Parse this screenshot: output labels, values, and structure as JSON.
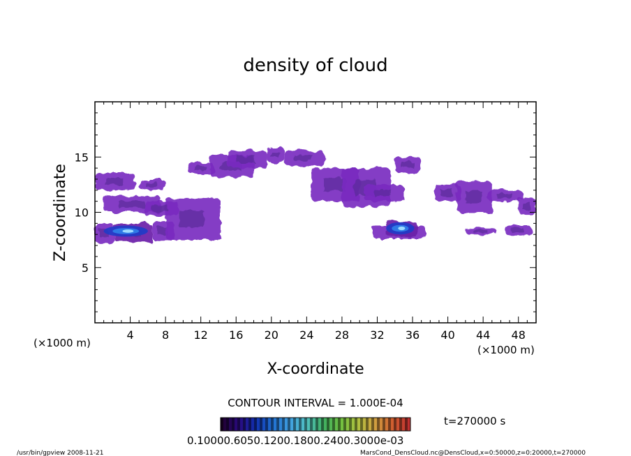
{
  "chart_data": {
    "type": "heatmap",
    "title": "density of cloud",
    "xlabel": "X-coordinate",
    "ylabel": "Z-coordinate",
    "x_unit": "(×1000 m)",
    "y_unit": "(×1000 m)",
    "xlim": [
      0,
      50
    ],
    "ylim": [
      0,
      20
    ],
    "x_ticks": [
      4,
      8,
      12,
      16,
      20,
      24,
      28,
      32,
      36,
      40,
      44,
      48
    ],
    "y_ticks": [
      5,
      10,
      15
    ],
    "contour_interval": "CONTOUR INTERVAL = 1.000E-04",
    "time_label": "t=270000 s",
    "colorbar_labels": "0.10000.6050.1200.1800.2400.3000e-03",
    "footer_left": "/usr/bin/gpview   2008-11-21",
    "footer_right": "MarsCond_DensCloud.nc@DensCloud,x=0:50000,z=0:20000,t=270000",
    "colorbar_colors": [
      "#200030",
      "#2a0a80",
      "#1030b0",
      "#2070d0",
      "#40a0e0",
      "#50c0c0",
      "#40b060",
      "#70c040",
      "#b0c040",
      "#d0a040",
      "#d06030",
      "#c03030"
    ],
    "cloud_regions": [
      {
        "x": [
          0.0,
          2.2
        ],
        "z": [
          7.2,
          9.0
        ],
        "level": 1
      },
      {
        "x": [
          2.2,
          6.5
        ],
        "z": [
          7.3,
          9.0
        ],
        "level": 2
      },
      {
        "x": [
          6.5,
          9.0
        ],
        "z": [
          7.4,
          9.2
        ],
        "level": 1
      },
      {
        "x": [
          8.0,
          14.2
        ],
        "z": [
          7.5,
          11.3
        ],
        "level": 1
      },
      {
        "x": [
          0.0,
          4.5
        ],
        "z": [
          12.0,
          13.6
        ],
        "level": 1
      },
      {
        "x": [
          1.0,
          7.5
        ],
        "z": [
          10.0,
          11.5
        ],
        "level": 1
      },
      {
        "x": [
          5.5,
          9.5
        ],
        "z": [
          9.7,
          11.0
        ],
        "level": 1
      },
      {
        "x": [
          5.0,
          8.0
        ],
        "z": [
          12.0,
          13.0
        ],
        "level": 1
      },
      {
        "x": [
          10.5,
          13.5
        ],
        "z": [
          13.5,
          14.5
        ],
        "level": 1
      },
      {
        "x": [
          13.0,
          18.0
        ],
        "z": [
          13.2,
          15.2
        ],
        "level": 1
      },
      {
        "x": [
          15.0,
          19.5
        ],
        "z": [
          14.0,
          15.6
        ],
        "level": 1
      },
      {
        "x": [
          19.5,
          21.5
        ],
        "z": [
          14.5,
          15.9
        ],
        "level": 1
      },
      {
        "x": [
          21.5,
          26.0
        ],
        "z": [
          14.2,
          15.6
        ],
        "level": 1
      },
      {
        "x": [
          24.5,
          30.0
        ],
        "z": [
          11.0,
          14.0
        ],
        "level": 1
      },
      {
        "x": [
          28.0,
          33.5
        ],
        "z": [
          10.5,
          14.0
        ],
        "level": 1
      },
      {
        "x": [
          30.5,
          35.0
        ],
        "z": [
          11.0,
          12.5
        ],
        "level": 1
      },
      {
        "x": [
          34.0,
          37.0
        ],
        "z": [
          13.6,
          15.0
        ],
        "level": 1
      },
      {
        "x": [
          31.5,
          37.5
        ],
        "z": [
          7.6,
          8.8
        ],
        "level": 1
      },
      {
        "x": [
          33.0,
          36.5
        ],
        "z": [
          7.8,
          9.2
        ],
        "level": 2
      },
      {
        "x": [
          38.5,
          41.5
        ],
        "z": [
          11.0,
          12.5
        ],
        "level": 1
      },
      {
        "x": [
          41.0,
          45.0
        ],
        "z": [
          10.0,
          12.8
        ],
        "level": 1
      },
      {
        "x": [
          44.5,
          48.5
        ],
        "z": [
          11.0,
          12.0
        ],
        "level": 1
      },
      {
        "x": [
          48.0,
          50.0
        ],
        "z": [
          9.8,
          11.3
        ],
        "level": 1
      },
      {
        "x": [
          42.0,
          45.5
        ],
        "z": [
          8.0,
          8.6
        ],
        "level": 1
      },
      {
        "x": [
          46.5,
          49.5
        ],
        "z": [
          7.9,
          8.8
        ],
        "level": 1
      }
    ],
    "blue_cores": [
      {
        "x": [
          1.0,
          6.0
        ],
        "z": [
          7.8,
          8.8
        ]
      },
      {
        "x": [
          33.0,
          36.2
        ],
        "z": [
          8.0,
          9.1
        ]
      }
    ]
  }
}
